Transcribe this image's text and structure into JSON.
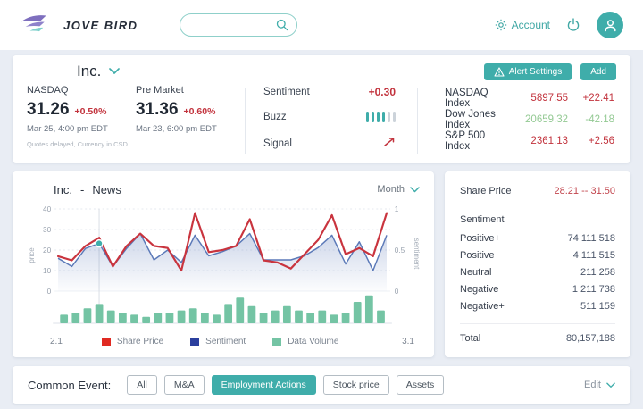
{
  "colors": {
    "accent": "#3fadaa",
    "red": "#c2333d",
    "green": "#93c993"
  },
  "header": {
    "brand": "JOVE BIRD",
    "search_placeholder": "",
    "account_label": "Account"
  },
  "overview": {
    "company": "Inc.",
    "quotes": [
      {
        "market": "NASDAQ",
        "price": "31.26",
        "change": "+0.50%",
        "time": "Mar 25, 4:00 pm  EDT",
        "note": "Quotes delayed, Currency in CSD"
      },
      {
        "market": "Pre Market",
        "price": "31.36",
        "change": "+0.60%",
        "time": "Mar 23, 6:00 pm  EDT",
        "note": ""
      }
    ],
    "signals": {
      "sentiment_label": "Sentiment",
      "sentiment_value": "+0.30",
      "buzz_label": "Buzz",
      "buzz_on": 4,
      "buzz_total": 6,
      "signal_label": "Signal"
    },
    "alert_button": "Alert Settings",
    "add_button": "Add",
    "indices": [
      {
        "name": "NASDAQ Index",
        "value": "5897.55",
        "change": "+22.41",
        "color": "#c2333d"
      },
      {
        "name": "Dow Jones Index",
        "value": "20659.32",
        "change": "-42.18",
        "color": "#93c993"
      },
      {
        "name": "S&P 500 Index",
        "value": "2361.13",
        "change": "+2.56",
        "color": "#c2333d"
      }
    ]
  },
  "news": {
    "company": "Inc.",
    "separator": "-",
    "title": "News",
    "period_label": "Month"
  },
  "stats": {
    "share_price_label": "Share Price",
    "share_price_value": "28.21 -- 31.50",
    "sentiment_header": "Sentiment",
    "rows": [
      {
        "label": "Positive+",
        "value": "74 111 518"
      },
      {
        "label": "Positive",
        "value": "4 111 515"
      },
      {
        "label": "Neutral",
        "value": "211 258"
      },
      {
        "label": "Negative",
        "value": "1 211 738"
      },
      {
        "label": "Negative+",
        "value": "511 159"
      }
    ],
    "total_label": "Total",
    "total_value": "80,157,188"
  },
  "events": {
    "label": "Common Event:",
    "buttons": [
      {
        "label": "All",
        "active": false
      },
      {
        "label": "M&A",
        "active": false
      },
      {
        "label": "Employment Actions",
        "active": true
      },
      {
        "label": "Stock price",
        "active": false
      },
      {
        "label": "Assets",
        "active": false
      }
    ],
    "edit_label": "Edit"
  },
  "chart_data": {
    "type": "line+bar",
    "title": "Inc. - News",
    "x_range_labels": [
      "2.1",
      "3.1"
    ],
    "left_axis": {
      "label": "price",
      "ticks": [
        0,
        10,
        20,
        30,
        40
      ],
      "range": [
        0,
        40
      ]
    },
    "right_axis": {
      "label": "sentiment",
      "ticks": [
        0,
        0.5,
        1
      ],
      "range": [
        0,
        1
      ]
    },
    "share_price": [
      17,
      15,
      22,
      26,
      12,
      22,
      28,
      22,
      21,
      10,
      38,
      19,
      20,
      22,
      35,
      15,
      14,
      11,
      18,
      25,
      37,
      18,
      21,
      17,
      38
    ],
    "sentiment": [
      0.4,
      0.3,
      0.52,
      0.58,
      0.3,
      0.52,
      0.7,
      0.38,
      0.5,
      0.35,
      0.68,
      0.43,
      0.48,
      0.55,
      0.7,
      0.38,
      0.38,
      0.38,
      0.43,
      0.53,
      0.68,
      0.33,
      0.6,
      0.25,
      0.68
    ],
    "data_volume": [
      4,
      5,
      7,
      9,
      6,
      5,
      4,
      3,
      5,
      5,
      6,
      7,
      5,
      4,
      9,
      12,
      8,
      5,
      6,
      8,
      6,
      5,
      6,
      4,
      5,
      10,
      13,
      6
    ],
    "marker_index": 3,
    "price_color": "#c9343e",
    "sentiment_color": "#5b79b8",
    "area_color": "#5b79b8",
    "bar_color": "#74c4a4",
    "legend": [
      {
        "label": "Share Price",
        "color": "#e02a22"
      },
      {
        "label": "Sentiment",
        "color": "#2b3f9e"
      },
      {
        "label": "Data Volume",
        "color": "#74c4a4"
      }
    ]
  }
}
